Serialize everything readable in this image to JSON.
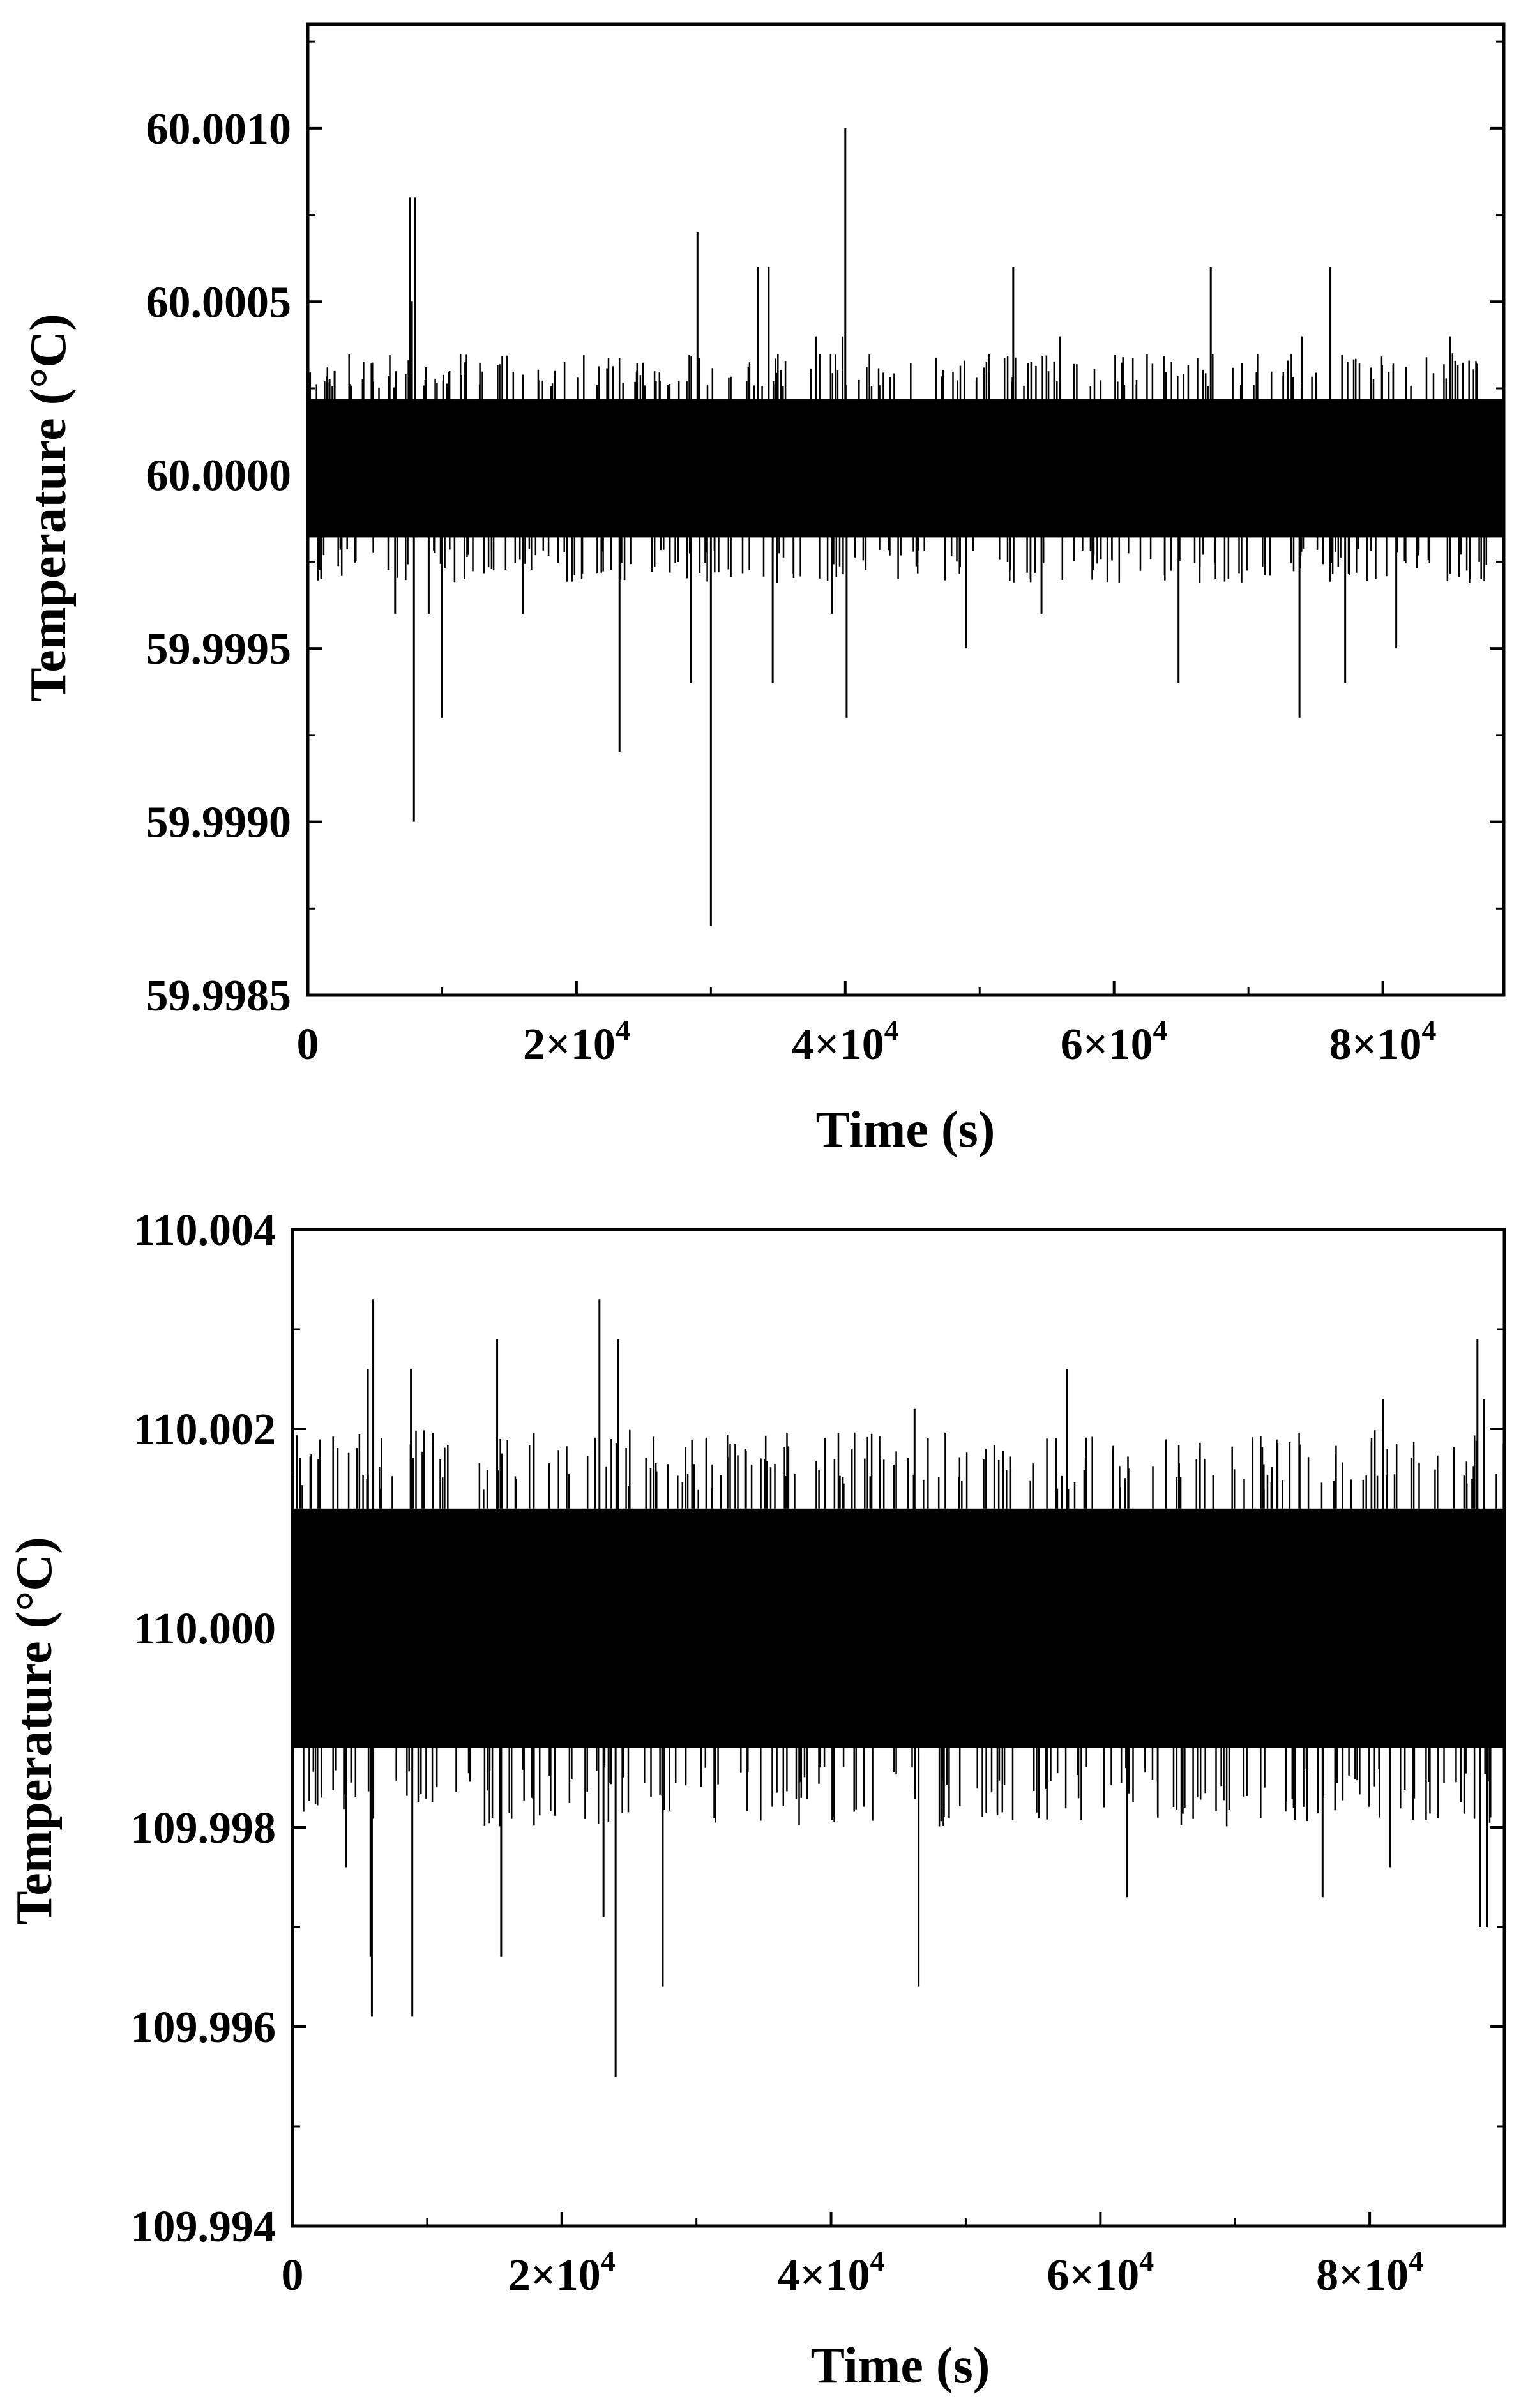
{
  "chart_data": [
    {
      "type": "line",
      "xlabel": "Time (s)",
      "ylabel": "Temperature (°C)",
      "xlim": [
        0,
        89000
      ],
      "ylim": [
        59.9985,
        60.0013
      ],
      "x_ticks": [
        0,
        20000,
        40000,
        60000,
        80000
      ],
      "x_tick_labels": [
        {
          "base": "0",
          "exp": ""
        },
        {
          "base": "2×10",
          "exp": "4"
        },
        {
          "base": "4×10",
          "exp": "4"
        },
        {
          "base": "6×10",
          "exp": "4"
        },
        {
          "base": "8×10",
          "exp": "4"
        }
      ],
      "y_ticks": [
        59.9985,
        59.999,
        59.9995,
        60.0,
        60.0005,
        60.001
      ],
      "y_tick_labels": [
        "59.9985",
        "59.9990",
        "59.9995",
        "60.0000",
        "60.0005",
        "60.0010"
      ],
      "grid": false,
      "series": [
        {
          "color": "#000000",
          "baseline": 60.0,
          "band": [
            59.99982,
            60.00022
          ],
          "spikes": [
            {
              "x": 1000,
              "y": 59.9997
            },
            {
              "x": 2000,
              "y": 60.0003
            },
            {
              "x": 6500,
              "y": 59.9996
            },
            {
              "x": 7600,
              "y": 60.0008
            },
            {
              "x": 7900,
              "y": 59.999
            },
            {
              "x": 8000,
              "y": 60.0008
            },
            {
              "x": 7750,
              "y": 60.0005
            },
            {
              "x": 9000,
              "y": 59.9996
            },
            {
              "x": 10000,
              "y": 59.9993
            },
            {
              "x": 16000,
              "y": 59.9996
            },
            {
              "x": 23200,
              "y": 59.9992
            },
            {
              "x": 24500,
              "y": 60.0003
            },
            {
              "x": 28500,
              "y": 59.9994
            },
            {
              "x": 29000,
              "y": 60.0007
            },
            {
              "x": 30000,
              "y": 59.9987
            },
            {
              "x": 33500,
              "y": 60.0006
            },
            {
              "x": 34300,
              "y": 60.0006
            },
            {
              "x": 34600,
              "y": 59.9994
            },
            {
              "x": 37800,
              "y": 60.0004
            },
            {
              "x": 39000,
              "y": 59.9996
            },
            {
              "x": 39800,
              "y": 60.0004
            },
            {
              "x": 40000,
              "y": 60.001
            },
            {
              "x": 40100,
              "y": 59.9993
            },
            {
              "x": 49000,
              "y": 59.9995
            },
            {
              "x": 52500,
              "y": 60.0006
            },
            {
              "x": 54600,
              "y": 59.9996
            },
            {
              "x": 56000,
              "y": 60.0004
            },
            {
              "x": 64800,
              "y": 59.9994
            },
            {
              "x": 67200,
              "y": 60.0006
            },
            {
              "x": 73800,
              "y": 59.9993
            },
            {
              "x": 74000,
              "y": 60.0004
            },
            {
              "x": 76100,
              "y": 60.0006
            },
            {
              "x": 77200,
              "y": 59.9994
            },
            {
              "x": 81000,
              "y": 59.9995
            },
            {
              "x": 85000,
              "y": 60.0004
            },
            {
              "x": 86500,
              "y": 59.9997
            }
          ]
        }
      ]
    },
    {
      "type": "line",
      "xlabel": "Time (s)",
      "ylabel": "Temperature (°C)",
      "xlim": [
        0,
        90000
      ],
      "ylim": [
        109.994,
        110.004
      ],
      "x_ticks": [
        0,
        20000,
        40000,
        60000,
        80000
      ],
      "x_tick_labels": [
        {
          "base": "0",
          "exp": ""
        },
        {
          "base": "2×10",
          "exp": "4"
        },
        {
          "base": "4×10",
          "exp": "4"
        },
        {
          "base": "6×10",
          "exp": "4"
        },
        {
          "base": "8×10",
          "exp": "4"
        }
      ],
      "y_ticks": [
        109.994,
        109.996,
        109.998,
        110.0,
        110.002,
        110.004
      ],
      "y_tick_labels": [
        "109.994",
        "109.996",
        "109.998",
        "110.000",
        "110.002",
        "110.004"
      ],
      "grid": false,
      "series": [
        {
          "color": "#000000",
          "baseline": 110.0,
          "band": [
            109.9988,
            110.0012
          ],
          "spikes": [
            {
              "x": 4000,
              "y": 109.9976
            },
            {
              "x": 5600,
              "y": 110.0026
            },
            {
              "x": 5900,
              "y": 109.9961
            },
            {
              "x": 6000,
              "y": 110.0033
            },
            {
              "x": 5800,
              "y": 109.9967
            },
            {
              "x": 8800,
              "y": 110.0026
            },
            {
              "x": 8900,
              "y": 109.9961
            },
            {
              "x": 15200,
              "y": 110.0029
            },
            {
              "x": 15500,
              "y": 109.9967
            },
            {
              "x": 22800,
              "y": 110.0033
            },
            {
              "x": 23100,
              "y": 109.9971
            },
            {
              "x": 24200,
              "y": 110.0029
            },
            {
              "x": 24000,
              "y": 109.9955
            },
            {
              "x": 27500,
              "y": 109.9964
            },
            {
              "x": 46200,
              "y": 110.0022
            },
            {
              "x": 46500,
              "y": 109.9964
            },
            {
              "x": 57500,
              "y": 110.0026
            },
            {
              "x": 62000,
              "y": 109.9973
            },
            {
              "x": 76500,
              "y": 109.9973
            },
            {
              "x": 81000,
              "y": 110.0023
            },
            {
              "x": 81500,
              "y": 109.9976
            },
            {
              "x": 88000,
              "y": 110.0029
            },
            {
              "x": 88200,
              "y": 109.997
            },
            {
              "x": 88500,
              "y": 110.0023
            },
            {
              "x": 88700,
              "y": 109.997
            }
          ]
        }
      ]
    }
  ]
}
